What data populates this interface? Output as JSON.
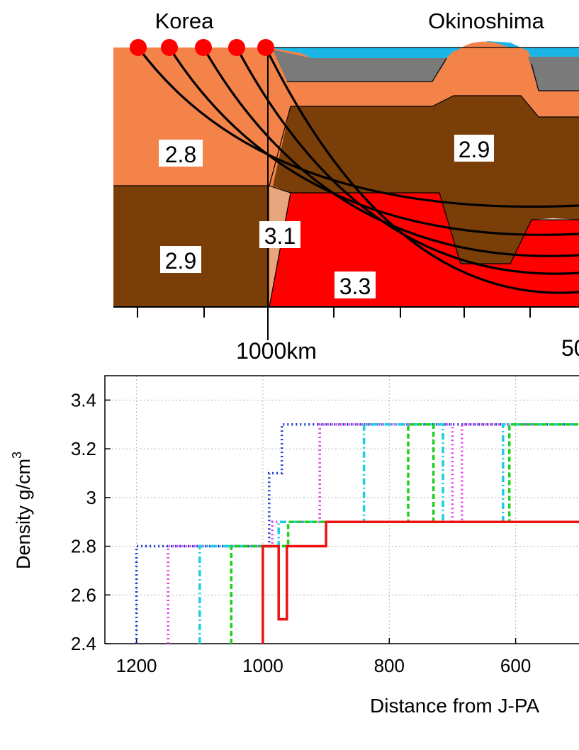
{
  "cross_section": {
    "place_labels": [
      "Korea",
      "Okinoshima"
    ],
    "density_labels": [
      "2.8",
      "2.9",
      "2.9",
      "3.1",
      "3.3"
    ],
    "distance_label": "1000km",
    "distance_label_cut": "50",
    "colors": {
      "sea": "#1ab6e8",
      "sediment": "#7a7a7a",
      "upper_crust": "#f4834a",
      "lower_crust": "#7a3e08",
      "transition": "#e7a67e",
      "mantle": "#ff0000",
      "source_dots": "#ff0000",
      "beam_lines": "#000000"
    },
    "source_dot_count": 5
  },
  "chart_data": {
    "type": "line",
    "ylabel": "Density g/cm",
    "ylabel_superscript": "3",
    "xlabel": "Distance from J-PA",
    "xlim": [
      1250,
      465
    ],
    "ylim": [
      2.4,
      3.5
    ],
    "x_ticks": [
      1200,
      1000,
      800,
      600
    ],
    "y_ticks": [
      2.4,
      2.6,
      2.8,
      3.0,
      3.2,
      3.4
    ],
    "y_tick_labels": [
      "2.4",
      "2.6",
      "2.8",
      "3",
      "3.2",
      "3.4"
    ],
    "grid": true,
    "series": [
      {
        "color": "#1f3bd6",
        "style": "dotted",
        "points": [
          [
            1200,
            2.4
          ],
          [
            1200,
            2.8
          ],
          [
            990,
            2.8
          ],
          [
            990,
            3.1
          ],
          [
            970,
            3.1
          ],
          [
            970,
            3.3
          ],
          [
            465,
            3.3
          ]
        ]
      },
      {
        "color": "#e040e0",
        "style": "dotted",
        "points": [
          [
            1150,
            2.4
          ],
          [
            1150,
            2.8
          ],
          [
            985,
            2.8
          ],
          [
            985,
            2.9
          ],
          [
            910,
            2.9
          ],
          [
            910,
            3.3
          ],
          [
            700,
            3.3
          ],
          [
            700,
            2.9
          ],
          [
            685,
            2.9
          ],
          [
            685,
            3.3
          ],
          [
            465,
            3.3
          ]
        ]
      },
      {
        "color": "#18d0e0",
        "style": "dashdot",
        "points": [
          [
            1100,
            2.4
          ],
          [
            1100,
            2.8
          ],
          [
            975,
            2.8
          ],
          [
            975,
            2.9
          ],
          [
            840,
            2.9
          ],
          [
            840,
            3.3
          ],
          [
            715,
            3.3
          ],
          [
            715,
            2.9
          ],
          [
            620,
            2.9
          ],
          [
            620,
            3.3
          ],
          [
            465,
            3.3
          ]
        ]
      },
      {
        "color": "#20d020",
        "style": "dashed",
        "points": [
          [
            1050,
            2.4
          ],
          [
            1050,
            2.8
          ],
          [
            960,
            2.8
          ],
          [
            960,
            2.9
          ],
          [
            770,
            2.9
          ],
          [
            770,
            3.3
          ],
          [
            730,
            3.3
          ],
          [
            730,
            2.9
          ],
          [
            610,
            2.9
          ],
          [
            610,
            3.3
          ],
          [
            465,
            3.3
          ]
        ]
      },
      {
        "color": "#ee1111",
        "style": "solid",
        "points": [
          [
            1000,
            2.4
          ],
          [
            1000,
            2.8
          ],
          [
            975,
            2.8
          ],
          [
            975,
            2.5
          ],
          [
            962,
            2.5
          ],
          [
            962,
            2.8
          ],
          [
            900,
            2.8
          ],
          [
            900,
            2.9
          ],
          [
            465,
            2.9
          ]
        ]
      }
    ]
  }
}
